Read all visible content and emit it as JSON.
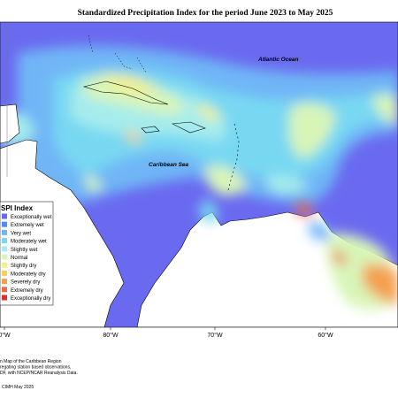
{
  "header": {
    "title": "Standardized Precipitation Index for the period June 2023 to May 2025"
  },
  "map": {
    "labels": [
      "Atlantic Ocean",
      "Caribbean Sea"
    ],
    "longitudes": [
      "0°W",
      "80°W",
      "70°W",
      "60°W"
    ]
  },
  "legend": {
    "title": "SPI Index",
    "items": [
      {
        "label": "Exceptionally wet",
        "color": "#6a6af0"
      },
      {
        "label": "Extremely wet",
        "color": "#4f8cf5"
      },
      {
        "label": "Very wet",
        "color": "#6fb6f6"
      },
      {
        "label": "Moderately wet",
        "color": "#78d8f2"
      },
      {
        "label": "Slightly wet",
        "color": "#a6ecec"
      },
      {
        "label": "Normal",
        "color": "#d8f5b8"
      },
      {
        "label": "Slightly dry",
        "color": "#f3f08a"
      },
      {
        "label": "Moderately dry",
        "color": "#f7cf5e"
      },
      {
        "label": "Severely dry",
        "color": "#f4a050"
      },
      {
        "label": "Extremely dry",
        "color": "#ee6a45"
      },
      {
        "label": "Exceptionally dry",
        "color": "#d83030"
      }
    ]
  },
  "footer": {
    "lines": [
      "n Map of the Caribbean Region",
      "regating station based observations,",
      "DF, with NCEP/NCAR Reanalysis Data."
    ],
    "credit": "CIMH May 2025"
  }
}
